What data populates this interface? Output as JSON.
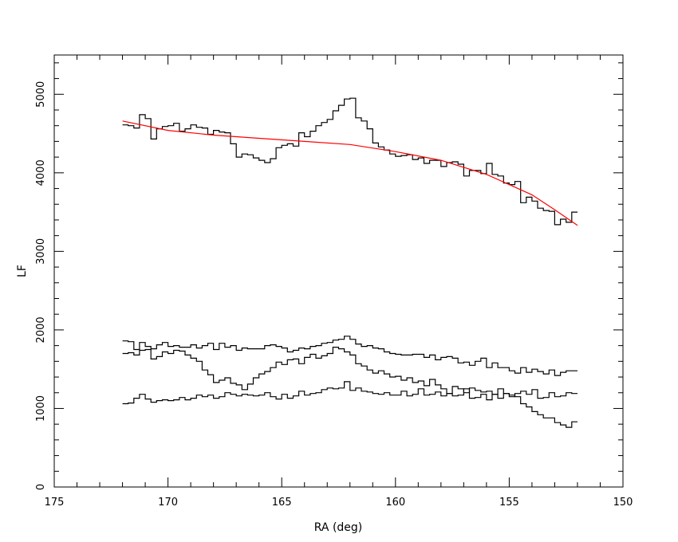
{
  "chart_data": {
    "type": "line",
    "xlabel": "RA (deg)",
    "ylabel": "LF",
    "x_reversed": true,
    "xlim": [
      175,
      150
    ],
    "ylim": [
      0,
      5500
    ],
    "grid": false,
    "x_ticks": [
      175,
      170,
      165,
      160,
      155,
      150
    ],
    "y_ticks": [
      0,
      1000,
      2000,
      3000,
      4000,
      5000
    ],
    "x_tick_labels": [
      "175",
      "170",
      "165",
      "160",
      "155",
      "150"
    ],
    "y_tick_labels": [
      "0",
      "1000",
      "2000",
      "3000",
      "4000",
      "5000"
    ],
    "series": [
      {
        "style": "step",
        "color": "#000000",
        "x_start": 172,
        "x_step": -0.25,
        "values": [
          4610,
          4600,
          4570,
          4740,
          4690,
          4430,
          4560,
          4590,
          4600,
          4630,
          4530,
          4560,
          4610,
          4580,
          4570,
          4490,
          4540,
          4520,
          4510,
          4370,
          4200,
          4240,
          4230,
          4190,
          4160,
          4130,
          4180,
          4320,
          4350,
          4370,
          4340,
          4510,
          4460,
          4530,
          4600,
          4640,
          4680,
          4790,
          4860,
          4940,
          4950,
          4700,
          4660,
          4560,
          4380,
          4330,
          4290,
          4240,
          4210,
          4220,
          4230,
          4170,
          4190,
          4120,
          4160,
          4160,
          4080,
          4130,
          4140,
          4110,
          3960,
          4030,
          4030,
          3990,
          4120,
          3980,
          3960,
          3870,
          3850,
          3890,
          3620,
          3690,
          3640,
          3550,
          3520,
          3510,
          3340,
          3410,
          3370,
          3500
        ]
      },
      {
        "style": "step",
        "color": "#000000",
        "x_start": 172,
        "x_step": -0.25,
        "values": [
          1860,
          1850,
          1750,
          1840,
          1790,
          1760,
          1810,
          1840,
          1790,
          1800,
          1780,
          1780,
          1810,
          1770,
          1800,
          1830,
          1750,
          1830,
          1780,
          1800,
          1740,
          1770,
          1760,
          1760,
          1760,
          1800,
          1810,
          1790,
          1770,
          1720,
          1740,
          1770,
          1760,
          1790,
          1800,
          1830,
          1840,
          1870,
          1880,
          1920,
          1880,
          1820,
          1790,
          1800,
          1770,
          1760,
          1720,
          1700,
          1690,
          1680,
          1680,
          1690,
          1690,
          1650,
          1680,
          1620,
          1650,
          1660,
          1640,
          1580,
          1590,
          1550,
          1600,
          1640,
          1520,
          1580,
          1520,
          1520,
          1480,
          1450,
          1520,
          1460,
          1500,
          1470,
          1440,
          1490,
          1420,
          1460,
          1480,
          1480
        ]
      },
      {
        "style": "step",
        "color": "#000000",
        "x_start": 172,
        "x_step": -0.25,
        "values": [
          1700,
          1710,
          1680,
          1740,
          1750,
          1630,
          1660,
          1720,
          1700,
          1740,
          1730,
          1680,
          1640,
          1600,
          1490,
          1430,
          1330,
          1360,
          1390,
          1320,
          1300,
          1240,
          1310,
          1390,
          1440,
          1470,
          1520,
          1590,
          1560,
          1620,
          1630,
          1570,
          1650,
          1690,
          1640,
          1670,
          1700,
          1780,
          1760,
          1720,
          1680,
          1570,
          1540,
          1490,
          1450,
          1480,
          1440,
          1400,
          1410,
          1360,
          1390,
          1330,
          1350,
          1290,
          1370,
          1300,
          1250,
          1190,
          1280,
          1250,
          1200,
          1260,
          1230,
          1210,
          1220,
          1180,
          1250,
          1190,
          1170,
          1150,
          1060,
          1020,
          960,
          920,
          880,
          880,
          820,
          790,
          760,
          830
        ]
      },
      {
        "style": "step",
        "color": "#000000",
        "x_start": 172,
        "x_step": -0.25,
        "values": [
          1060,
          1070,
          1130,
          1180,
          1120,
          1080,
          1100,
          1110,
          1100,
          1110,
          1140,
          1110,
          1130,
          1170,
          1150,
          1170,
          1130,
          1150,
          1200,
          1180,
          1160,
          1180,
          1170,
          1160,
          1170,
          1200,
          1150,
          1120,
          1180,
          1130,
          1160,
          1220,
          1170,
          1190,
          1200,
          1240,
          1260,
          1250,
          1260,
          1340,
          1230,
          1260,
          1220,
          1210,
          1190,
          1180,
          1200,
          1170,
          1170,
          1220,
          1160,
          1180,
          1250,
          1170,
          1180,
          1210,
          1160,
          1190,
          1160,
          1170,
          1250,
          1130,
          1140,
          1180,
          1110,
          1180,
          1130,
          1190,
          1150,
          1190,
          1220,
          1180,
          1240,
          1130,
          1140,
          1200,
          1150,
          1160,
          1200,
          1190
        ]
      },
      {
        "style": "line",
        "color": "#ff0000",
        "x": [
          172,
          170,
          168,
          166,
          164,
          162,
          160,
          158,
          156,
          155,
          154,
          153,
          152
        ],
        "values": [
          4660,
          4540,
          4480,
          4440,
          4400,
          4360,
          4270,
          4160,
          3980,
          3850,
          3720,
          3530,
          3330
        ]
      }
    ]
  }
}
